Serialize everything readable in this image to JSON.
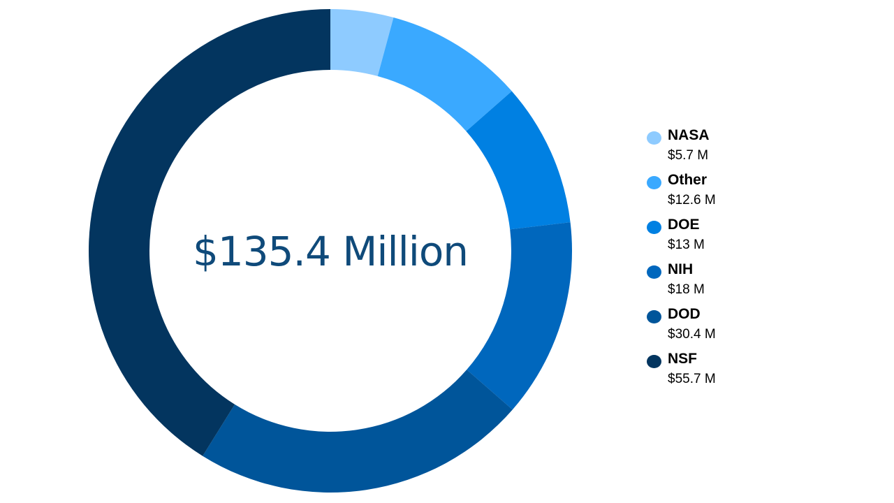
{
  "chart_data": {
    "type": "pie",
    "style": "donut",
    "center_label": "$135.4 Million",
    "legend_position": "right",
    "slices": [
      {
        "name": "NASA",
        "value": 5.7,
        "label": "$5.7 M",
        "color": "#8ecbff"
      },
      {
        "name": "Other",
        "value": 12.6,
        "label": "$12.6 M",
        "color": "#3aa9ff"
      },
      {
        "name": "DOE",
        "value": 13,
        "label": "$13 M",
        "color": "#0080e2"
      },
      {
        "name": "NIH",
        "value": 18,
        "label": "$18 M",
        "color": "#0067bd"
      },
      {
        "name": "DOD",
        "value": 30.4,
        "label": "$30.4 M",
        "color": "#00559a"
      },
      {
        "name": "NSF",
        "value": 55.7,
        "label": "$55.7 M",
        "color": "#03355f"
      }
    ]
  }
}
